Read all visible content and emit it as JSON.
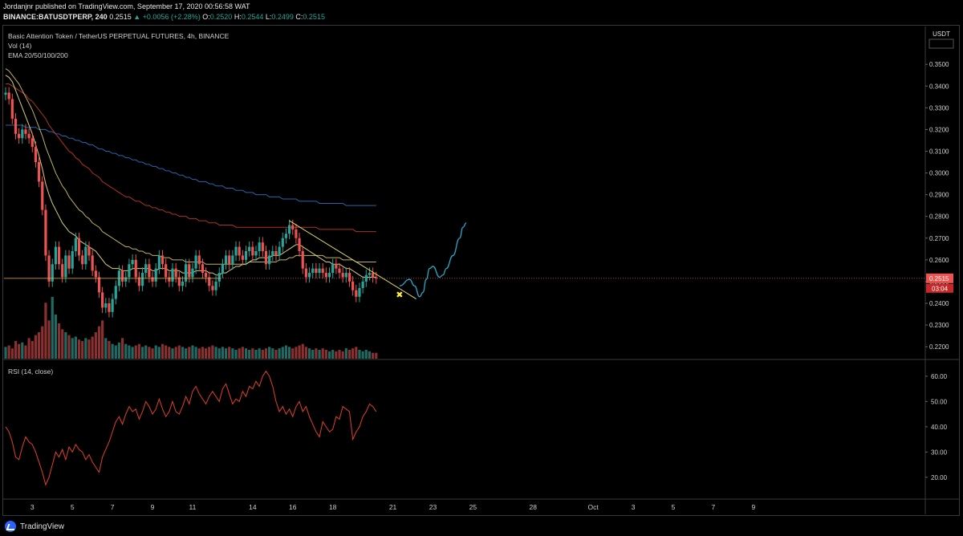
{
  "header": {
    "publisher": "Jordanjnr published on TradingView.com, September 17, 2020 00:56:58 WAT",
    "symbol": "BINANCE:BATUSDTPERP, 240",
    "last": "0.2515",
    "change": "▲ +0.0056 (+2.28%)",
    "open_label": "O:",
    "open": "0.2520",
    "high_label": "H:",
    "high": "0.2544",
    "low_label": "L:",
    "low": "0.2499",
    "close_label": "C:",
    "close": "0.2515"
  },
  "legend": {
    "title": "Basic Attention Token / TetherUS PERPETUAL FUTURES, 4h, BINANCE",
    "vol": "Vol (14)",
    "ema": "EMA 20/50/100/200",
    "rsi": "RSI (14, close)"
  },
  "footer": {
    "brand": "TradingView"
  },
  "colors": {
    "bg": "#000000",
    "up": "#26a69a",
    "down": "#ef5350",
    "ema20": "#f0e68c",
    "ema50": "#d4c56a",
    "ema100": "#c0392b",
    "ema200": "#2e6fbf",
    "rsi": "#e0402a",
    "projection": "#29a8c9",
    "trendline": "#e8e060",
    "price_badge": "#ef5350",
    "marker": "#ffeb3b"
  },
  "chart_data": {
    "type": "candlestick",
    "price_axis": {
      "unit": "USDT",
      "ticks": [
        0.35,
        0.34,
        0.33,
        0.32,
        0.31,
        0.3,
        0.29,
        0.28,
        0.27,
        0.26,
        0.25,
        0.24,
        0.23,
        0.22
      ],
      "tick_labels": [
        "0.3500",
        "0.3400",
        "0.3300",
        "0.3200",
        "0.3100",
        "0.3000",
        "0.2900",
        "0.2800",
        "0.2700",
        "0.2600",
        "0.2500",
        "0.2400",
        "0.2300",
        "0.2200"
      ],
      "range": [
        0.2145,
        0.363
      ],
      "current_price": 0.2515,
      "current_price_label": "0.2515",
      "countdown_label": "03:04"
    },
    "time_axis": {
      "labels": [
        "3",
        "5",
        "7",
        "9",
        "11",
        "14",
        "16",
        "18",
        "21",
        "23",
        "25",
        "28",
        "Oct",
        "3",
        "5",
        "7",
        "9"
      ],
      "day_offsets": [
        0,
        2,
        4,
        6,
        8,
        11,
        13,
        15,
        18,
        20,
        22,
        25,
        28,
        30,
        32,
        34,
        36
      ]
    },
    "candles": {
      "note": "OHLC values in USDT, 4h bars",
      "o": [
        0.336,
        0.337,
        0.334,
        0.325,
        0.318,
        0.316,
        0.32,
        0.318,
        0.316,
        0.312,
        0.305,
        0.296,
        0.283,
        0.262,
        0.25,
        0.258,
        0.266,
        0.258,
        0.252,
        0.262,
        0.256,
        0.264,
        0.27,
        0.262,
        0.258,
        0.266,
        0.262,
        0.255,
        0.252,
        0.245,
        0.238,
        0.24,
        0.236,
        0.242,
        0.248,
        0.255,
        0.25,
        0.252,
        0.258,
        0.26,
        0.252,
        0.248,
        0.254,
        0.258,
        0.252,
        0.25,
        0.256,
        0.262,
        0.258,
        0.252,
        0.25,
        0.256,
        0.252,
        0.248,
        0.25,
        0.258,
        0.252,
        0.256,
        0.262,
        0.258,
        0.254,
        0.252,
        0.248,
        0.246,
        0.25,
        0.254,
        0.258,
        0.262,
        0.258,
        0.262,
        0.266,
        0.262,
        0.26,
        0.264,
        0.266,
        0.262,
        0.264,
        0.268,
        0.264,
        0.258,
        0.262,
        0.264,
        0.262,
        0.266,
        0.27,
        0.272,
        0.276,
        0.274,
        0.27,
        0.264,
        0.256,
        0.252,
        0.254,
        0.256,
        0.254,
        0.256,
        0.254,
        0.252,
        0.254,
        0.258,
        0.256,
        0.254,
        0.252,
        0.254,
        0.25,
        0.246,
        0.243,
        0.247,
        0.25,
        0.253,
        0.254,
        0.252
      ],
      "c": [
        0.337,
        0.334,
        0.325,
        0.318,
        0.316,
        0.32,
        0.318,
        0.316,
        0.312,
        0.305,
        0.296,
        0.283,
        0.262,
        0.25,
        0.258,
        0.266,
        0.258,
        0.252,
        0.262,
        0.256,
        0.264,
        0.27,
        0.262,
        0.258,
        0.266,
        0.262,
        0.255,
        0.252,
        0.245,
        0.238,
        0.24,
        0.236,
        0.242,
        0.248,
        0.255,
        0.25,
        0.252,
        0.258,
        0.26,
        0.252,
        0.248,
        0.254,
        0.258,
        0.252,
        0.25,
        0.256,
        0.262,
        0.258,
        0.252,
        0.25,
        0.256,
        0.252,
        0.248,
        0.25,
        0.258,
        0.252,
        0.256,
        0.262,
        0.258,
        0.254,
        0.252,
        0.248,
        0.246,
        0.25,
        0.254,
        0.258,
        0.262,
        0.258,
        0.262,
        0.266,
        0.262,
        0.26,
        0.264,
        0.266,
        0.262,
        0.264,
        0.268,
        0.264,
        0.258,
        0.262,
        0.264,
        0.262,
        0.266,
        0.27,
        0.272,
        0.276,
        0.274,
        0.27,
        0.264,
        0.256,
        0.252,
        0.254,
        0.256,
        0.254,
        0.256,
        0.254,
        0.252,
        0.254,
        0.258,
        0.256,
        0.254,
        0.252,
        0.254,
        0.25,
        0.246,
        0.243,
        0.247,
        0.25,
        0.253,
        0.254,
        0.252,
        0.2515
      ],
      "volume": [
        8,
        9,
        7,
        12,
        10,
        11,
        9,
        14,
        12,
        16,
        18,
        22,
        38,
        26,
        42,
        30,
        24,
        20,
        18,
        16,
        14,
        15,
        13,
        12,
        14,
        13,
        15,
        18,
        22,
        26,
        14,
        12,
        10,
        9,
        11,
        14,
        10,
        9,
        8,
        9,
        10,
        8,
        9,
        8,
        7,
        9,
        8,
        10,
        9,
        8,
        7,
        8,
        9,
        8,
        7,
        8,
        9,
        8,
        7,
        8,
        7,
        8,
        9,
        8,
        7,
        8,
        7,
        8,
        7,
        6,
        7,
        8,
        7,
        6,
        7,
        6,
        7,
        6,
        7,
        8,
        7,
        6,
        7,
        8,
        9,
        8,
        7,
        8,
        9,
        10,
        8,
        7,
        6,
        7,
        6,
        7,
        6,
        5,
        6,
        5,
        6,
        5,
        7,
        6,
        7,
        8,
        6,
        5,
        6,
        5,
        4,
        4
      ]
    },
    "ema": {
      "ema20": [
        0.345,
        0.344,
        0.342,
        0.338,
        0.334,
        0.33,
        0.326,
        0.322,
        0.318,
        0.313,
        0.308,
        0.302,
        0.295,
        0.29,
        0.286,
        0.283,
        0.28,
        0.277,
        0.275,
        0.273,
        0.272,
        0.271,
        0.269,
        0.268,
        0.267,
        0.266,
        0.265,
        0.264,
        0.262,
        0.26,
        0.258,
        0.257,
        0.256,
        0.256,
        0.256,
        0.255,
        0.255,
        0.255,
        0.256,
        0.256,
        0.256,
        0.256,
        0.256,
        0.256,
        0.255,
        0.255,
        0.256,
        0.256,
        0.256,
        0.255,
        0.255,
        0.255,
        0.255,
        0.254,
        0.254,
        0.254,
        0.254,
        0.255,
        0.255,
        0.255,
        0.255,
        0.254,
        0.254,
        0.253,
        0.253,
        0.254,
        0.254,
        0.255,
        0.256,
        0.257,
        0.257,
        0.258,
        0.258,
        0.259,
        0.26,
        0.26,
        0.261,
        0.261,
        0.261,
        0.261,
        0.262,
        0.262,
        0.262,
        0.263,
        0.264,
        0.265,
        0.266,
        0.267,
        0.267,
        0.266,
        0.265,
        0.264,
        0.263,
        0.262,
        0.261,
        0.26,
        0.259,
        0.259,
        0.258,
        0.258,
        0.258,
        0.257,
        0.256,
        0.256,
        0.255,
        0.254,
        0.253,
        0.252,
        0.252,
        0.252,
        0.252,
        0.252
      ],
      "ema50": [
        0.348,
        0.347,
        0.345,
        0.343,
        0.341,
        0.338,
        0.335,
        0.332,
        0.329,
        0.325,
        0.321,
        0.317,
        0.312,
        0.308,
        0.304,
        0.3,
        0.297,
        0.294,
        0.292,
        0.289,
        0.287,
        0.285,
        0.283,
        0.282,
        0.28,
        0.279,
        0.277,
        0.276,
        0.275,
        0.273,
        0.272,
        0.271,
        0.27,
        0.269,
        0.268,
        0.267,
        0.266,
        0.266,
        0.265,
        0.265,
        0.264,
        0.264,
        0.263,
        0.263,
        0.262,
        0.262,
        0.262,
        0.261,
        0.261,
        0.261,
        0.26,
        0.26,
        0.26,
        0.26,
        0.259,
        0.259,
        0.259,
        0.259,
        0.259,
        0.259,
        0.258,
        0.258,
        0.258,
        0.258,
        0.258,
        0.258,
        0.258,
        0.258,
        0.258,
        0.258,
        0.258,
        0.258,
        0.258,
        0.259,
        0.259,
        0.259,
        0.259,
        0.259,
        0.259,
        0.259,
        0.259,
        0.259,
        0.26,
        0.26,
        0.26,
        0.261,
        0.261,
        0.262,
        0.262,
        0.262,
        0.262,
        0.262,
        0.262,
        0.262,
        0.262,
        0.262,
        0.261,
        0.261,
        0.261,
        0.261,
        0.261,
        0.26,
        0.26,
        0.26,
        0.26,
        0.259,
        0.259,
        0.259,
        0.259,
        0.259,
        0.259,
        0.259
      ],
      "ema100": [
        0.341,
        0.341,
        0.34,
        0.339,
        0.338,
        0.337,
        0.336,
        0.334,
        0.333,
        0.331,
        0.329,
        0.327,
        0.325,
        0.322,
        0.32,
        0.318,
        0.316,
        0.314,
        0.312,
        0.31,
        0.309,
        0.307,
        0.306,
        0.304,
        0.303,
        0.302,
        0.3,
        0.299,
        0.298,
        0.296,
        0.295,
        0.294,
        0.293,
        0.292,
        0.291,
        0.29,
        0.289,
        0.289,
        0.288,
        0.287,
        0.287,
        0.286,
        0.285,
        0.285,
        0.284,
        0.284,
        0.283,
        0.283,
        0.282,
        0.282,
        0.281,
        0.281,
        0.28,
        0.28,
        0.28,
        0.279,
        0.279,
        0.279,
        0.278,
        0.278,
        0.278,
        0.277,
        0.277,
        0.277,
        0.276,
        0.276,
        0.276,
        0.276,
        0.276,
        0.275,
        0.275,
        0.275,
        0.275,
        0.275,
        0.275,
        0.275,
        0.275,
        0.275,
        0.275,
        0.275,
        0.275,
        0.275,
        0.275,
        0.275,
        0.275,
        0.275,
        0.275,
        0.275,
        0.275,
        0.275,
        0.275,
        0.275,
        0.275,
        0.275,
        0.274,
        0.274,
        0.274,
        0.274,
        0.274,
        0.274,
        0.274,
        0.274,
        0.274,
        0.274,
        0.274,
        0.273,
        0.273,
        0.273,
        0.273,
        0.273,
        0.273,
        0.273
      ],
      "ema200": [
        0.322,
        0.322,
        0.322,
        0.322,
        0.322,
        0.322,
        0.321,
        0.321,
        0.321,
        0.321,
        0.32,
        0.32,
        0.32,
        0.319,
        0.319,
        0.318,
        0.318,
        0.317,
        0.317,
        0.316,
        0.316,
        0.315,
        0.315,
        0.314,
        0.314,
        0.313,
        0.313,
        0.312,
        0.311,
        0.311,
        0.31,
        0.31,
        0.309,
        0.309,
        0.308,
        0.308,
        0.307,
        0.307,
        0.306,
        0.306,
        0.305,
        0.305,
        0.304,
        0.304,
        0.303,
        0.303,
        0.302,
        0.302,
        0.301,
        0.301,
        0.3,
        0.3,
        0.299,
        0.299,
        0.298,
        0.298,
        0.297,
        0.297,
        0.296,
        0.296,
        0.296,
        0.295,
        0.295,
        0.294,
        0.294,
        0.294,
        0.293,
        0.293,
        0.293,
        0.292,
        0.292,
        0.292,
        0.291,
        0.291,
        0.291,
        0.29,
        0.29,
        0.29,
        0.29,
        0.289,
        0.289,
        0.289,
        0.289,
        0.288,
        0.288,
        0.288,
        0.288,
        0.288,
        0.287,
        0.287,
        0.287,
        0.287,
        0.287,
        0.287,
        0.286,
        0.286,
        0.286,
        0.286,
        0.286,
        0.286,
        0.286,
        0.286,
        0.285,
        0.285,
        0.285,
        0.285,
        0.285,
        0.285,
        0.285,
        0.285,
        0.285,
        0.285
      ]
    },
    "rsi": {
      "axis_ticks": [
        60,
        50,
        40,
        30,
        20
      ],
      "tick_labels": [
        "60.00",
        "50.00",
        "40.00",
        "30.00",
        "20.00"
      ],
      "range": [
        12,
        66
      ],
      "values": [
        40,
        38,
        34,
        28,
        27,
        32,
        36,
        34,
        33,
        30,
        26,
        22,
        17,
        20,
        25,
        30,
        28,
        31,
        27,
        32,
        30,
        33,
        31,
        30,
        27,
        29,
        26,
        24,
        22,
        28,
        31,
        34,
        38,
        42,
        44,
        41,
        45,
        48,
        46,
        47,
        43,
        46,
        50,
        48,
        45,
        47,
        51,
        47,
        44,
        46,
        50,
        46,
        45,
        48,
        52,
        49,
        54,
        56,
        53,
        51,
        49,
        52,
        54,
        52,
        50,
        55,
        57,
        53,
        49,
        51,
        50,
        54,
        52,
        56,
        55,
        58,
        56,
        60,
        62,
        60,
        56,
        50,
        46,
        48,
        45,
        47,
        44,
        48,
        50,
        46,
        48,
        44,
        41,
        38,
        36,
        42,
        40,
        38,
        39,
        44,
        43,
        48,
        47,
        46,
        35,
        38,
        40,
        44,
        46,
        49,
        48,
        46
      ],
      "color": "#e0402a"
    },
    "drawings": {
      "trendline": {
        "from": [
          85,
          0.278
        ],
        "to": [
          123.0,
          0.242
        ]
      },
      "projection": [
        [
          118,
          0.248
        ],
        [
          121,
          0.251
        ],
        [
          122.5,
          0.248
        ],
        [
          124,
          0.243
        ],
        [
          125,
          0.245
        ],
        [
          126,
          0.251
        ],
        [
          127,
          0.256
        ],
        [
          128,
          0.257
        ],
        [
          130,
          0.252
        ],
        [
          131,
          0.253
        ],
        [
          132,
          0.256
        ],
        [
          134,
          0.262
        ],
        [
          136,
          0.27
        ],
        [
          137,
          0.275
        ],
        [
          138,
          0.277
        ]
      ],
      "marker": {
        "bar": 118,
        "price": 0.244,
        "glyph": "✖"
      }
    }
  }
}
